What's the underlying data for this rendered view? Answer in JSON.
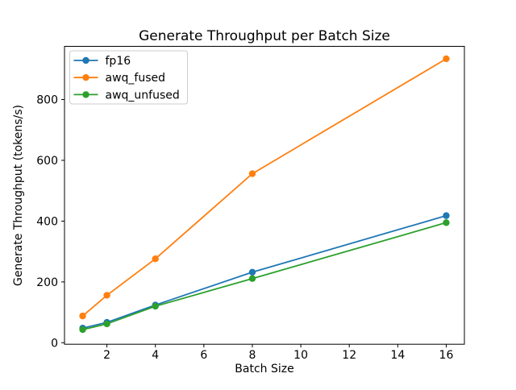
{
  "figure": {
    "background": "#ffffff"
  },
  "chart_data": {
    "type": "line",
    "title": "Generate Throughput per Batch Size",
    "xlabel": "Batch Size",
    "ylabel": "Generate Throughput (tokens/s)",
    "x": [
      1,
      2,
      4,
      8,
      16
    ],
    "series": [
      {
        "name": "fp16",
        "color": "#1f77b4",
        "values": [
          48,
          67,
          124,
          232,
          418
        ]
      },
      {
        "name": "awq_fused",
        "color": "#ff7f0e",
        "values": [
          88,
          156,
          276,
          556,
          934
        ]
      },
      {
        "name": "awq_unfused",
        "color": "#2ca02c",
        "values": [
          43,
          62,
          120,
          211,
          395
        ]
      }
    ],
    "marker": "circle",
    "xticks": [
      2,
      4,
      6,
      8,
      10,
      12,
      14,
      16
    ],
    "yticks": [
      0,
      200,
      400,
      600,
      800
    ],
    "xlim": [
      0.25,
      16.75
    ],
    "ylim": [
      -5,
      975
    ],
    "grid": false,
    "legend_position": "upper-left",
    "axis_color": "#000000",
    "legend_border_color": "#cccccc",
    "legend_background": "#ffffff"
  }
}
